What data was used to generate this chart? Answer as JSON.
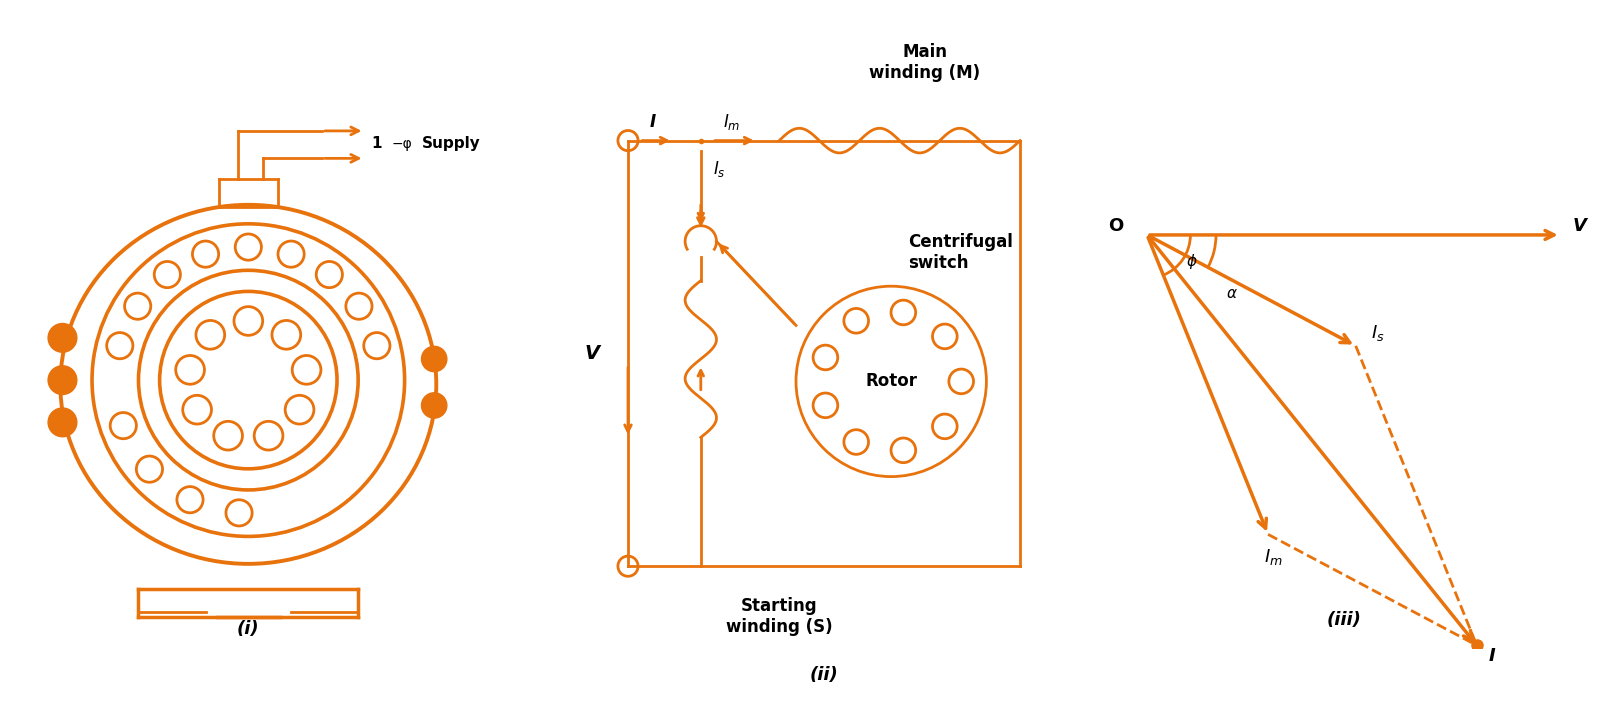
{
  "color": "#E8720C",
  "bg_color": "#FFFFFF",
  "label_i": "(i)",
  "label_ii": "(ii)",
  "label_iii": "(iii)"
}
